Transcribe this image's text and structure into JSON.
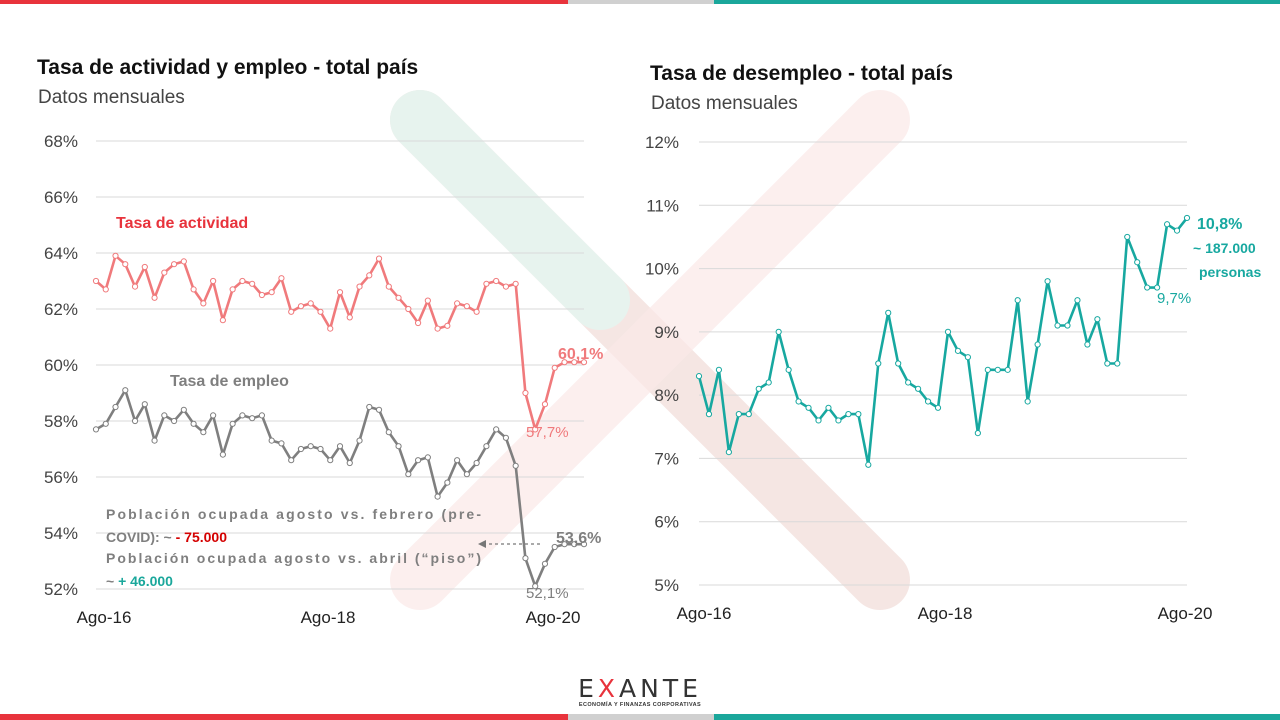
{
  "colors": {
    "red": "#e8333c",
    "teal": "#1aa79b",
    "grey": "#d0d0d0",
    "actividad": "#f07a7c",
    "empleo": "#7f7f7f",
    "desempleo": "#17a8a0",
    "neg": "#d40000"
  },
  "logo": {
    "word_pre": "E",
    "word_x": "X",
    "word_post": "ANTE",
    "tagline": "ECONOMÍA Y FINANZAS CORPORATIVAS"
  },
  "chart_data": [
    {
      "type": "line",
      "title": "Tasa de actividad y empleo - total país",
      "subtitle": "Datos mensuales",
      "ylim": [
        52,
        68
      ],
      "yticks": [
        "68%",
        "66%",
        "64%",
        "62%",
        "60%",
        "58%",
        "56%",
        "54%",
        "52%"
      ],
      "xticks": [
        "Ago-16",
        "Ago-18",
        "Ago-20"
      ],
      "series": [
        {
          "name": "Tasa de actividad",
          "values": [
            63.0,
            62.7,
            63.9,
            63.6,
            62.8,
            63.5,
            62.4,
            63.3,
            63.6,
            63.7,
            62.7,
            62.2,
            63.0,
            61.6,
            62.7,
            63.0,
            62.9,
            62.5,
            62.6,
            63.1,
            61.9,
            62.1,
            62.2,
            61.9,
            61.3,
            62.6,
            61.7,
            62.8,
            63.2,
            63.8,
            62.8,
            62.4,
            62.0,
            61.5,
            62.3,
            61.3,
            61.4,
            62.2,
            62.1,
            61.9,
            62.9,
            63.0,
            62.8,
            62.9,
            59.0,
            57.7,
            58.6,
            59.9,
            60.1,
            60.1,
            60.1
          ]
        },
        {
          "name": "Tasa de empleo",
          "values": [
            57.7,
            57.9,
            58.5,
            59.1,
            58.0,
            58.6,
            57.3,
            58.2,
            58.0,
            58.4,
            57.9,
            57.6,
            58.2,
            56.8,
            57.9,
            58.2,
            58.1,
            58.2,
            57.3,
            57.2,
            56.6,
            57.0,
            57.1,
            57.0,
            56.6,
            57.1,
            56.5,
            57.3,
            58.5,
            58.4,
            57.6,
            57.1,
            56.1,
            56.6,
            56.7,
            55.3,
            55.8,
            56.6,
            56.1,
            56.5,
            57.1,
            57.7,
            57.4,
            56.4,
            53.1,
            52.1,
            52.9,
            53.5,
            53.6,
            53.6,
            53.6
          ]
        }
      ],
      "labels": {
        "actividad_last": "60,1%",
        "actividad_min": "57,7%",
        "empleo_last": "53,6%",
        "empleo_min": "52,1%"
      },
      "annotation": {
        "line1": "Población ocupada agosto vs. febrero (pre-",
        "line2_pre": "COVID): ~ ",
        "line2_val": "- 75.000",
        "line3": "Población ocupada agosto vs. abril (“piso”)",
        "line4_pre": "~ ",
        "line4_val": "+ 46.000"
      }
    },
    {
      "type": "line",
      "title": "Tasa de desempleo - total país",
      "subtitle": "Datos mensuales",
      "ylim": [
        5,
        12
      ],
      "yticks": [
        "12%",
        "11%",
        "10%",
        "9%",
        "8%",
        "7%",
        "6%",
        "5%"
      ],
      "xticks": [
        "Ago-16",
        "Ago-18",
        "Ago-20"
      ],
      "series": [
        {
          "name": "Tasa de desempleo",
          "values": [
            8.3,
            7.7,
            8.4,
            7.1,
            7.7,
            7.7,
            8.1,
            8.2,
            9.0,
            8.4,
            7.9,
            7.8,
            7.6,
            7.8,
            7.6,
            7.7,
            7.7,
            6.9,
            8.5,
            9.3,
            8.5,
            8.2,
            8.1,
            7.9,
            7.8,
            9.0,
            8.7,
            8.6,
            7.4,
            8.4,
            8.4,
            8.4,
            9.5,
            7.9,
            8.8,
            9.8,
            9.1,
            9.1,
            9.5,
            8.8,
            9.2,
            8.5,
            8.5,
            10.5,
            10.1,
            9.7,
            9.7,
            10.7,
            10.6,
            10.8
          ]
        }
      ],
      "labels": {
        "last": "10,8%",
        "last_note1": "~ 187.000",
        "last_note2": "personas",
        "min_label": "9,7%"
      }
    }
  ]
}
